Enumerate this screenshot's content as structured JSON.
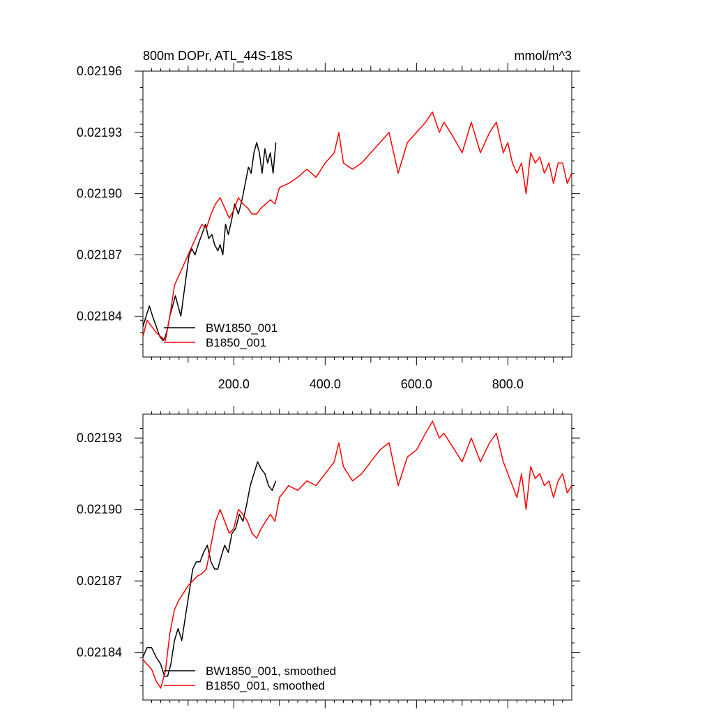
{
  "chart_data": [
    {
      "type": "line",
      "title_left": "800m DOPr, ATL_44S-18S",
      "title_right": "mmol/m^3",
      "xlim": [
        1,
        940
      ],
      "ylim": [
        0.02182,
        0.02196
      ],
      "x_major_ticks": [
        200,
        400,
        600,
        800
      ],
      "x_tick_labels": [
        "200.0",
        "400.0",
        "600.0",
        "800.0"
      ],
      "y_major_ticks": [
        0.02184,
        0.02187,
        0.0219,
        0.02193,
        0.02196
      ],
      "y_tick_labels": [
        "0.02184",
        "0.02187",
        "0.02190",
        "0.02193",
        "0.02196"
      ],
      "legend_position": "bottom-left",
      "series": [
        {
          "name": "BW1850_001",
          "color": "#000000",
          "x": [
            1,
            8,
            15,
            22,
            30,
            38,
            45,
            50,
            55,
            60,
            66,
            72,
            78,
            84,
            90,
            96,
            102,
            108,
            115,
            122,
            130,
            138,
            145,
            152,
            158,
            165,
            170,
            176,
            182,
            188,
            195,
            202,
            210,
            218,
            225,
            232,
            238,
            244,
            250,
            256,
            262,
            268,
            274,
            280,
            286,
            292
          ],
          "values": [
            0.021835,
            0.02184,
            0.021845,
            0.02184,
            0.021835,
            0.02183,
            0.021828,
            0.02183,
            0.021834,
            0.02184,
            0.021845,
            0.02185,
            0.021845,
            0.02184,
            0.02185,
            0.02186,
            0.02187,
            0.021873,
            0.02187,
            0.021875,
            0.02188,
            0.021885,
            0.021878,
            0.02188,
            0.021875,
            0.021872,
            0.021875,
            0.02187,
            0.021885,
            0.02188,
            0.021887,
            0.021895,
            0.02189,
            0.021897,
            0.021905,
            0.021913,
            0.02191,
            0.02192,
            0.021925,
            0.02192,
            0.02191,
            0.021922,
            0.021915,
            0.02192,
            0.02191,
            0.021925
          ]
        },
        {
          "name": "B1850_001",
          "color": "#ff0000",
          "x": [
            1,
            10,
            20,
            30,
            40,
            50,
            60,
            70,
            80,
            90,
            100,
            110,
            120,
            130,
            140,
            150,
            160,
            170,
            180,
            190,
            200,
            210,
            220,
            230,
            240,
            250,
            260,
            270,
            280,
            290,
            300,
            320,
            340,
            360,
            380,
            400,
            420,
            430,
            440,
            460,
            480,
            500,
            520,
            540,
            560,
            580,
            600,
            620,
            635,
            650,
            660,
            680,
            700,
            720,
            740,
            760,
            775,
            790,
            800,
            810,
            820,
            830,
            840,
            850,
            860,
            870,
            880,
            890,
            900,
            910,
            920,
            930,
            940
          ],
          "values": [
            0.02183,
            0.021838,
            0.021835,
            0.021832,
            0.02183,
            0.021828,
            0.02184,
            0.021855,
            0.02186,
            0.021865,
            0.02187,
            0.021875,
            0.02188,
            0.021885,
            0.021883,
            0.02189,
            0.021895,
            0.021898,
            0.021893,
            0.021888,
            0.021892,
            0.021898,
            0.021895,
            0.021893,
            0.02189,
            0.02189,
            0.021893,
            0.021895,
            0.021897,
            0.021895,
            0.021903,
            0.021905,
            0.021908,
            0.021912,
            0.021908,
            0.021915,
            0.02192,
            0.02193,
            0.021915,
            0.021912,
            0.021915,
            0.02192,
            0.021925,
            0.02193,
            0.02191,
            0.021925,
            0.02193,
            0.021935,
            0.02194,
            0.02193,
            0.021935,
            0.021928,
            0.02192,
            0.021935,
            0.02192,
            0.02193,
            0.021935,
            0.02192,
            0.021925,
            0.021915,
            0.02191,
            0.021915,
            0.0219,
            0.02192,
            0.021915,
            0.021918,
            0.02191,
            0.021915,
            0.021905,
            0.021915,
            0.021915,
            0.021905,
            0.02191
          ]
        }
      ]
    },
    {
      "type": "line",
      "xlim": [
        1,
        940
      ],
      "ylim": [
        0.02182,
        0.02194
      ],
      "y_major_ticks": [
        0.02184,
        0.02187,
        0.0219,
        0.02193
      ],
      "y_tick_labels": [
        "0.02184",
        "0.02187",
        "0.02190",
        "0.02193"
      ],
      "legend_position": "bottom-left",
      "series": [
        {
          "name": "BW1850_001, smoothed",
          "color": "#000000",
          "x": [
            1,
            10,
            20,
            30,
            40,
            48,
            55,
            62,
            70,
            78,
            86,
            94,
            102,
            110,
            118,
            126,
            134,
            142,
            150,
            158,
            165,
            172,
            180,
            188,
            196,
            204,
            212,
            220,
            228,
            236,
            244,
            252,
            260,
            268,
            276,
            284,
            292
          ],
          "values": [
            0.021838,
            0.021842,
            0.021842,
            0.021838,
            0.021835,
            0.02183,
            0.02183,
            0.021835,
            0.021845,
            0.02185,
            0.021845,
            0.021855,
            0.021865,
            0.021875,
            0.021878,
            0.021878,
            0.021882,
            0.021885,
            0.021878,
            0.021875,
            0.021875,
            0.02188,
            0.021885,
            0.021882,
            0.02189,
            0.021892,
            0.021898,
            0.021895,
            0.021902,
            0.02191,
            0.021915,
            0.02192,
            0.021917,
            0.021915,
            0.02191,
            0.021908,
            0.021912
          ]
        },
        {
          "name": "B1850_001, smoothed",
          "color": "#ff0000",
          "x": [
            1,
            10,
            20,
            30,
            40,
            50,
            60,
            70,
            80,
            90,
            100,
            110,
            120,
            130,
            140,
            150,
            160,
            170,
            180,
            190,
            200,
            210,
            220,
            230,
            240,
            250,
            260,
            270,
            280,
            290,
            300,
            320,
            340,
            360,
            380,
            400,
            420,
            430,
            440,
            460,
            480,
            500,
            520,
            540,
            560,
            580,
            600,
            620,
            635,
            650,
            660,
            680,
            700,
            720,
            740,
            760,
            775,
            790,
            800,
            810,
            820,
            830,
            840,
            850,
            860,
            870,
            880,
            890,
            900,
            910,
            920,
            930,
            940
          ],
          "values": [
            0.021837,
            0.021835,
            0.021833,
            0.021828,
            0.021825,
            0.021832,
            0.021848,
            0.021858,
            0.021862,
            0.021865,
            0.021868,
            0.02187,
            0.021872,
            0.021873,
            0.021875,
            0.021885,
            0.021895,
            0.0219,
            0.021895,
            0.02189,
            0.021892,
            0.0219,
            0.021898,
            0.021895,
            0.02189,
            0.021888,
            0.021892,
            0.021895,
            0.021898,
            0.021895,
            0.021905,
            0.02191,
            0.021908,
            0.021912,
            0.02191,
            0.021915,
            0.02192,
            0.021928,
            0.021918,
            0.021912,
            0.021915,
            0.02192,
            0.021925,
            0.021928,
            0.02191,
            0.021922,
            0.021925,
            0.021932,
            0.021937,
            0.02193,
            0.021932,
            0.021926,
            0.02192,
            0.02193,
            0.02192,
            0.021928,
            0.021932,
            0.02192,
            0.021915,
            0.02191,
            0.021905,
            0.021915,
            0.0219,
            0.021918,
            0.021913,
            0.021915,
            0.02191,
            0.021912,
            0.021905,
            0.021912,
            0.021915,
            0.021907,
            0.02191
          ]
        }
      ]
    }
  ]
}
